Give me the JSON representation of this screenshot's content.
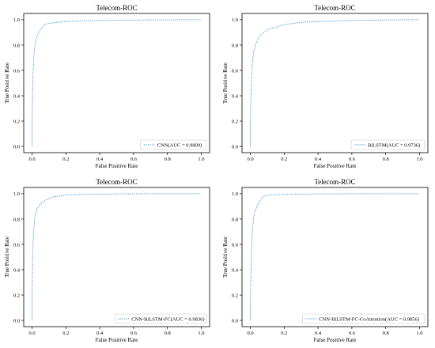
{
  "chart_data": [
    {
      "type": "line",
      "title": "Telecom-ROC",
      "xlabel": "False Positive Rate",
      "ylabel": "True Positive Rate",
      "xlim": [
        0,
        1
      ],
      "ylim": [
        0,
        1
      ],
      "xticks": [
        "0.0",
        "0.2",
        "0.4",
        "0.6",
        "0.8",
        "1.0"
      ],
      "yticks": [
        "0.0",
        "0.2",
        "0.4",
        "0.6",
        "0.8",
        "1.0"
      ],
      "legend_position": "lower-right",
      "color": "#4a9fd8",
      "series": [
        {
          "name": "CNN(AUC = 0.9809)",
          "x": [
            0.0,
            0.0,
            0.005,
            0.01,
            0.015,
            0.02,
            0.025,
            0.03,
            0.04,
            0.05,
            0.06,
            0.07,
            0.08,
            0.1,
            0.12,
            0.15,
            0.2,
            0.3,
            0.4,
            0.5,
            0.6,
            0.7,
            0.8,
            0.9,
            1.0
          ],
          "y": [
            0.0,
            0.18,
            0.55,
            0.7,
            0.78,
            0.82,
            0.85,
            0.87,
            0.9,
            0.92,
            0.94,
            0.96,
            0.965,
            0.97,
            0.975,
            0.98,
            0.985,
            0.99,
            0.993,
            0.995,
            0.997,
            0.998,
            0.999,
            1.0,
            1.0
          ]
        }
      ]
    },
    {
      "type": "line",
      "title": "Telecom-ROC",
      "xlabel": "False Positive Rate",
      "ylabel": "True Positive Rate",
      "xlim": [
        0,
        1
      ],
      "ylim": [
        0,
        1
      ],
      "xticks": [
        "0.0",
        "0.2",
        "0.4",
        "0.6",
        "0.8",
        "1.0"
      ],
      "yticks": [
        "0.0",
        "0.2",
        "0.4",
        "0.6",
        "0.8",
        "1.0"
      ],
      "legend_position": "lower-right",
      "color": "#4a9fd8",
      "series": [
        {
          "name": "BiLSTM(AUC = 0.9736)",
          "x": [
            0.0,
            0.0,
            0.005,
            0.01,
            0.015,
            0.02,
            0.03,
            0.04,
            0.05,
            0.06,
            0.08,
            0.1,
            0.12,
            0.15,
            0.18,
            0.2,
            0.25,
            0.3,
            0.4,
            0.5,
            0.6,
            0.7,
            0.8,
            0.9,
            1.0
          ],
          "y": [
            0.0,
            0.2,
            0.48,
            0.63,
            0.7,
            0.75,
            0.8,
            0.83,
            0.86,
            0.88,
            0.9,
            0.92,
            0.93,
            0.94,
            0.955,
            0.96,
            0.97,
            0.98,
            0.985,
            0.99,
            0.993,
            0.996,
            0.998,
            1.0,
            1.0
          ]
        }
      ]
    },
    {
      "type": "line",
      "title": "Telecom-ROC",
      "xlabel": "False Positive Rate",
      "ylabel": "True Positive Rate",
      "xlim": [
        0,
        1
      ],
      "ylim": [
        0,
        1
      ],
      "xticks": [
        "0.0",
        "0.2",
        "0.4",
        "0.6",
        "0.8",
        "1.0"
      ],
      "yticks": [
        "0.0",
        "0.2",
        "0.4",
        "0.6",
        "0.8",
        "1.0"
      ],
      "legend_position": "lower-right",
      "color": "#4a9fd8",
      "series": [
        {
          "name": "CNN-BiLSTM-FC(AUC = 0.9836)",
          "x": [
            0.0,
            0.0,
            0.003,
            0.006,
            0.01,
            0.015,
            0.02,
            0.03,
            0.04,
            0.05,
            0.06,
            0.08,
            0.1,
            0.12,
            0.15,
            0.2,
            0.3,
            0.4,
            0.5,
            0.6,
            0.7,
            0.8,
            0.9,
            1.0
          ],
          "y": [
            0.0,
            0.2,
            0.45,
            0.62,
            0.72,
            0.8,
            0.84,
            0.88,
            0.9,
            0.92,
            0.93,
            0.95,
            0.96,
            0.975,
            0.98,
            0.99,
            0.995,
            0.997,
            0.998,
            0.999,
            1.0,
            1.0,
            1.0,
            1.0
          ]
        }
      ]
    },
    {
      "type": "line",
      "title": "Telecom-ROC",
      "xlabel": "False Positive Rate",
      "ylabel": "True Positive Rate",
      "xlim": [
        0,
        1
      ],
      "ylim": [
        0,
        1
      ],
      "xticks": [
        "0.0",
        "0.2",
        "0.4",
        "0.6",
        "0.8",
        "1.0"
      ],
      "yticks": [
        "0.0",
        "0.2",
        "0.4",
        "0.6",
        "0.8",
        "1.0"
      ],
      "legend_position": "lower-right",
      "color": "#4a9fd8",
      "series": [
        {
          "name": "CNN-BiLSTM-FC-CoAttention(AUC = 0.9856)",
          "x": [
            0.0,
            0.0,
            0.005,
            0.01,
            0.015,
            0.02,
            0.025,
            0.03,
            0.04,
            0.05,
            0.06,
            0.07,
            0.08,
            0.1,
            0.12,
            0.15,
            0.2,
            0.3,
            0.4,
            0.5,
            0.6,
            0.7,
            0.8,
            0.9,
            1.0
          ],
          "y": [
            0.0,
            0.15,
            0.5,
            0.66,
            0.75,
            0.82,
            0.85,
            0.87,
            0.9,
            0.93,
            0.95,
            0.97,
            0.98,
            0.985,
            0.99,
            0.993,
            0.995,
            0.997,
            0.998,
            0.999,
            1.0,
            1.0,
            1.0,
            1.0,
            1.0
          ]
        }
      ]
    }
  ]
}
